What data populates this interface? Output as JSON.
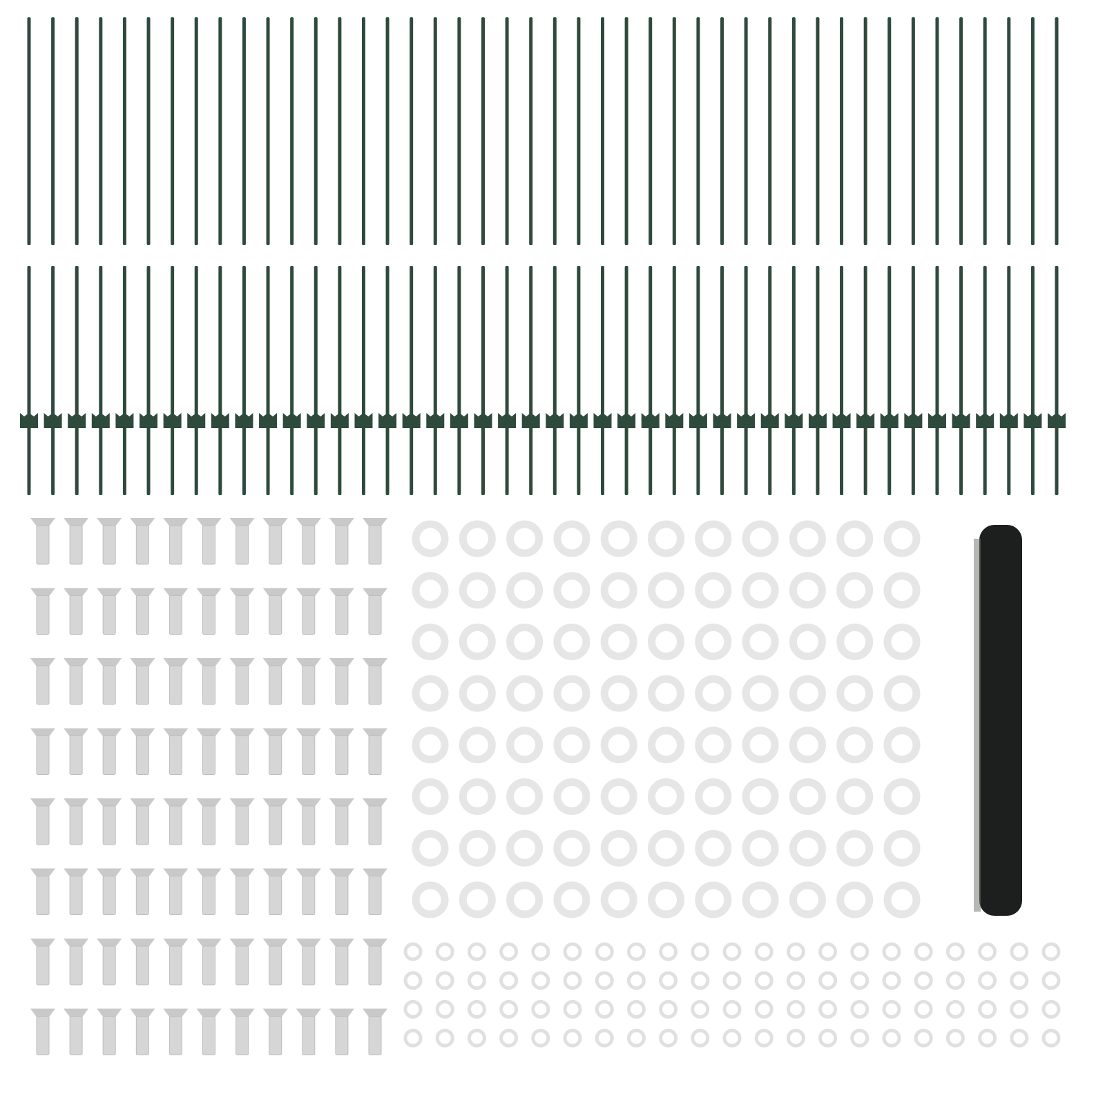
{
  "product_parts": {
    "fence_posts_plain": {
      "count": 44,
      "color": "#2e4a3d"
    },
    "fence_posts_with_clip": {
      "count": 44,
      "color": "#2e4a3d"
    },
    "screws": {
      "columns": 11,
      "rows": 8,
      "color": "#d6d6d6"
    },
    "large_washers": {
      "columns": 11,
      "rows": 8,
      "color": "#e6e6e6"
    },
    "small_washers": {
      "columns": 21,
      "rows": 4,
      "color": "#e0e0e0"
    },
    "tension_wire_roll": {
      "color": "#1c1f1d"
    }
  },
  "background_color": "#ffffff"
}
